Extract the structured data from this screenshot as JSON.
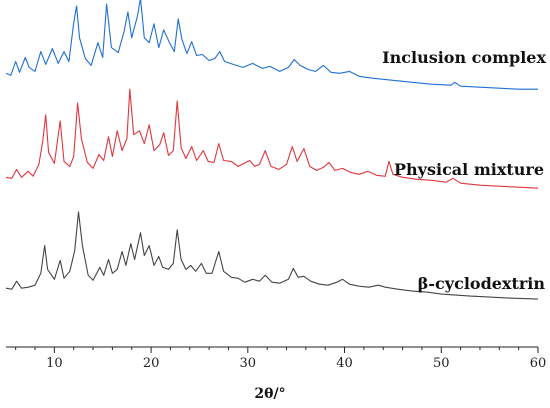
{
  "chart_data": {
    "type": "line",
    "title": "",
    "xlabel": "2θ/°",
    "ylabel": "",
    "xlim": [
      5,
      60
    ],
    "xticks": [
      10,
      20,
      30,
      40,
      50,
      60
    ],
    "ylim": [
      0,
      30
    ],
    "yaxis_visible": false,
    "grid": false,
    "legend": "none; series names printed beside traces on the right",
    "series": [
      {
        "name": "Inclusion complex",
        "color": "#1f6fd6",
        "offset": 21,
        "points": [
          [
            5,
            2.4
          ],
          [
            5.5,
            2.2
          ],
          [
            6,
            3.6
          ],
          [
            6.4,
            2.5
          ],
          [
            7,
            4.0
          ],
          [
            7.4,
            3.0
          ],
          [
            8,
            2.6
          ],
          [
            8.6,
            4.6
          ],
          [
            9.1,
            3.3
          ],
          [
            9.8,
            4.9
          ],
          [
            10.4,
            3.4
          ],
          [
            11,
            4.6
          ],
          [
            11.5,
            3.6
          ],
          [
            12.0,
            7.5
          ],
          [
            12.3,
            9.2
          ],
          [
            12.6,
            6.0
          ],
          [
            13.2,
            3.9
          ],
          [
            13.8,
            3.2
          ],
          [
            14.5,
            5.5
          ],
          [
            15.0,
            4.0
          ],
          [
            15.4,
            9.4
          ],
          [
            15.9,
            5.0
          ],
          [
            16.6,
            4.5
          ],
          [
            17.2,
            6.6
          ],
          [
            17.6,
            8.6
          ],
          [
            18.0,
            6.0
          ],
          [
            18.6,
            8.2
          ],
          [
            18.9,
            10.0
          ],
          [
            19.3,
            6.0
          ],
          [
            19.8,
            5.5
          ],
          [
            20.3,
            7.4
          ],
          [
            20.8,
            5.0
          ],
          [
            21.3,
            6.8
          ],
          [
            21.9,
            5.5
          ],
          [
            22.4,
            4.6
          ],
          [
            22.8,
            7.9
          ],
          [
            23.2,
            5.8
          ],
          [
            23.7,
            4.4
          ],
          [
            24.2,
            5.6
          ],
          [
            24.7,
            4.2
          ],
          [
            25.3,
            4.3
          ],
          [
            26.0,
            3.7
          ],
          [
            26.6,
            3.9
          ],
          [
            27.1,
            4.6
          ],
          [
            27.6,
            3.6
          ],
          [
            28.5,
            3.3
          ],
          [
            29.5,
            3.0
          ],
          [
            30.5,
            3.4
          ],
          [
            31.5,
            2.9
          ],
          [
            32.3,
            3.1
          ],
          [
            33.3,
            2.6
          ],
          [
            34.2,
            3.0
          ],
          [
            34.8,
            3.8
          ],
          [
            35.4,
            3.2
          ],
          [
            36.2,
            2.8
          ],
          [
            37.0,
            2.6
          ],
          [
            37.8,
            3.2
          ],
          [
            38.6,
            2.5
          ],
          [
            39.5,
            2.4
          ],
          [
            40.5,
            2.6
          ],
          [
            41.5,
            2.1
          ],
          [
            43,
            1.9
          ],
          [
            45,
            1.7
          ],
          [
            47,
            1.5
          ],
          [
            49,
            1.3
          ],
          [
            51,
            1.2
          ],
          [
            51.4,
            1.5
          ],
          [
            52,
            1.1
          ],
          [
            54,
            1.0
          ],
          [
            56,
            0.9
          ],
          [
            58,
            0.8
          ],
          [
            60,
            0.8
          ]
        ]
      },
      {
        "name": "Physical mixture",
        "color": "#e0363d",
        "offset": 11,
        "points": [
          [
            5,
            1.9
          ],
          [
            5.6,
            1.8
          ],
          [
            6.1,
            2.7
          ],
          [
            6.6,
            1.9
          ],
          [
            7.3,
            2.5
          ],
          [
            7.8,
            2.0
          ],
          [
            8.4,
            3.2
          ],
          [
            8.8,
            5.6
          ],
          [
            9.1,
            8.2
          ],
          [
            9.4,
            4.4
          ],
          [
            10.0,
            3.3
          ],
          [
            10.6,
            7.6
          ],
          [
            11.0,
            3.5
          ],
          [
            11.6,
            3.0
          ],
          [
            12.0,
            4.0
          ],
          [
            12.4,
            9.4
          ],
          [
            12.8,
            5.8
          ],
          [
            13.4,
            3.4
          ],
          [
            14.0,
            2.8
          ],
          [
            14.6,
            4.2
          ],
          [
            15.1,
            3.6
          ],
          [
            15.6,
            6.0
          ],
          [
            16.0,
            4.0
          ],
          [
            16.5,
            6.6
          ],
          [
            17.0,
            4.6
          ],
          [
            17.5,
            5.8
          ],
          [
            17.8,
            10.8
          ],
          [
            18.2,
            6.2
          ],
          [
            18.8,
            6.6
          ],
          [
            19.3,
            5.3
          ],
          [
            19.8,
            7.2
          ],
          [
            20.3,
            4.6
          ],
          [
            20.9,
            5.2
          ],
          [
            21.3,
            6.4
          ],
          [
            21.8,
            4.1
          ],
          [
            22.3,
            4.6
          ],
          [
            22.7,
            9.6
          ],
          [
            23.1,
            4.9
          ],
          [
            23.6,
            3.8
          ],
          [
            24.2,
            5.0
          ],
          [
            24.7,
            3.6
          ],
          [
            25.4,
            4.6
          ],
          [
            25.9,
            3.5
          ],
          [
            26.5,
            3.4
          ],
          [
            27.0,
            5.3
          ],
          [
            27.5,
            3.6
          ],
          [
            28.3,
            3.5
          ],
          [
            29.0,
            3.0
          ],
          [
            29.6,
            3.3
          ],
          [
            30.2,
            3.6
          ],
          [
            30.7,
            3.0
          ],
          [
            31.2,
            3.2
          ],
          [
            31.8,
            4.6
          ],
          [
            32.4,
            3.0
          ],
          [
            33.2,
            2.7
          ],
          [
            34.0,
            3.2
          ],
          [
            34.6,
            5.0
          ],
          [
            35.1,
            3.5
          ],
          [
            35.8,
            4.8
          ],
          [
            36.4,
            3.0
          ],
          [
            37.1,
            2.6
          ],
          [
            37.8,
            2.9
          ],
          [
            38.4,
            3.4
          ],
          [
            39.0,
            2.6
          ],
          [
            39.8,
            2.8
          ],
          [
            40.6,
            2.4
          ],
          [
            41.5,
            2.2
          ],
          [
            42.4,
            2.5
          ],
          [
            43.3,
            2.1
          ],
          [
            44.2,
            2.0
          ],
          [
            44.6,
            3.5
          ],
          [
            45.0,
            2.2
          ],
          [
            46,
            1.9
          ],
          [
            47.5,
            1.7
          ],
          [
            49,
            1.6
          ],
          [
            50.5,
            1.4
          ],
          [
            51.2,
            1.8
          ],
          [
            52,
            1.3
          ],
          [
            54,
            1.1
          ],
          [
            56,
            1.0
          ],
          [
            58,
            0.9
          ],
          [
            60,
            0.8
          ]
        ]
      },
      {
        "name": "β-cyclodextrin",
        "color": "#444444",
        "offset": 0,
        "points": [
          [
            5,
            1.7
          ],
          [
            5.6,
            1.6
          ],
          [
            6.1,
            2.4
          ],
          [
            6.6,
            1.7
          ],
          [
            7.3,
            1.8
          ],
          [
            8.0,
            2.0
          ],
          [
            8.6,
            3.2
          ],
          [
            9.0,
            6.0
          ],
          [
            9.3,
            3.6
          ],
          [
            10.0,
            2.6
          ],
          [
            10.6,
            4.5
          ],
          [
            11.0,
            2.7
          ],
          [
            11.6,
            3.4
          ],
          [
            12.1,
            5.5
          ],
          [
            12.5,
            9.4
          ],
          [
            12.9,
            6.0
          ],
          [
            13.5,
            3.0
          ],
          [
            14.0,
            2.5
          ],
          [
            14.7,
            3.8
          ],
          [
            15.1,
            3.0
          ],
          [
            15.6,
            4.6
          ],
          [
            16.0,
            3.2
          ],
          [
            16.5,
            3.6
          ],
          [
            17.0,
            5.4
          ],
          [
            17.4,
            4.0
          ],
          [
            17.9,
            6.2
          ],
          [
            18.3,
            4.6
          ],
          [
            18.9,
            7.3
          ],
          [
            19.3,
            5.0
          ],
          [
            19.8,
            6.0
          ],
          [
            20.3,
            4.0
          ],
          [
            20.8,
            4.9
          ],
          [
            21.2,
            3.8
          ],
          [
            21.8,
            3.6
          ],
          [
            22.3,
            4.2
          ],
          [
            22.7,
            7.6
          ],
          [
            23.1,
            4.6
          ],
          [
            23.6,
            3.6
          ],
          [
            24.1,
            4.0
          ],
          [
            24.6,
            3.4
          ],
          [
            25.2,
            4.2
          ],
          [
            25.7,
            3.2
          ],
          [
            26.3,
            3.2
          ],
          [
            27.0,
            5.4
          ],
          [
            27.5,
            3.4
          ],
          [
            28.3,
            2.8
          ],
          [
            29.0,
            2.7
          ],
          [
            29.7,
            2.3
          ],
          [
            30.5,
            2.6
          ],
          [
            31.2,
            2.4
          ],
          [
            31.8,
            3.0
          ],
          [
            32.5,
            2.3
          ],
          [
            33.3,
            2.2
          ],
          [
            34.2,
            2.6
          ],
          [
            34.7,
            3.7
          ],
          [
            35.2,
            2.8
          ],
          [
            35.8,
            2.9
          ],
          [
            36.5,
            2.4
          ],
          [
            37.4,
            2.1
          ],
          [
            38.3,
            2.0
          ],
          [
            39.2,
            2.3
          ],
          [
            39.8,
            2.6
          ],
          [
            40.5,
            2.1
          ],
          [
            41.5,
            1.9
          ],
          [
            42.5,
            1.8
          ],
          [
            43.5,
            2.0
          ],
          [
            44.2,
            1.8
          ],
          [
            45.5,
            1.6
          ],
          [
            47,
            1.4
          ],
          [
            48.5,
            1.3
          ],
          [
            50,
            1.1
          ],
          [
            51.5,
            1.0
          ],
          [
            53,
            0.9
          ],
          [
            55,
            0.8
          ],
          [
            57,
            0.7
          ],
          [
            60,
            0.6
          ]
        ]
      }
    ]
  }
}
